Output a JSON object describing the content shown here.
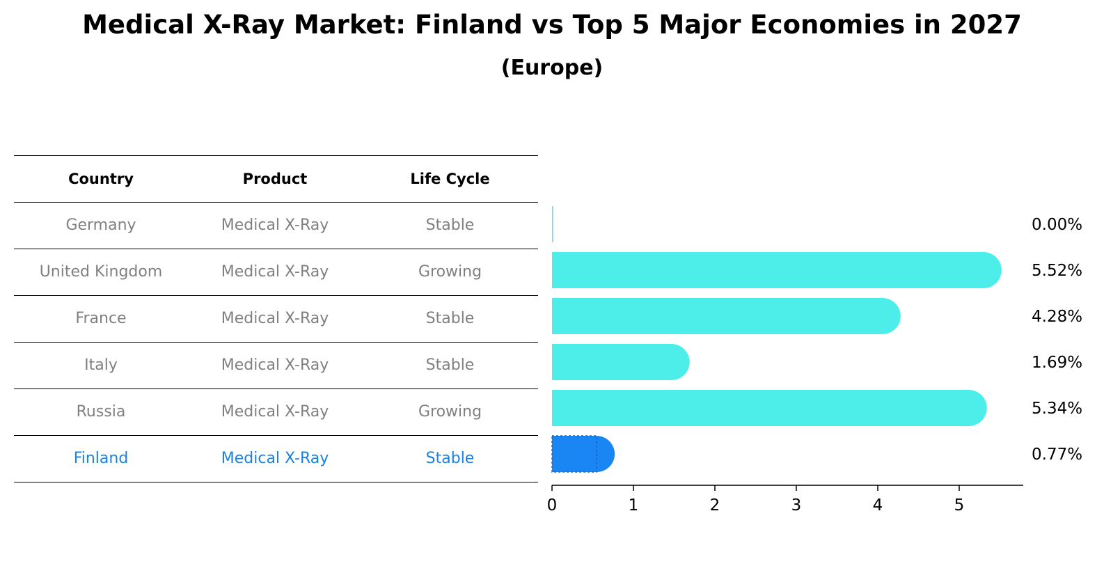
{
  "title": "Medical X-Ray Market: Finland vs Top 5 Major Economies in 2027",
  "subtitle": "(Europe)",
  "table": {
    "headers": [
      "Country",
      "Product",
      "Life Cycle"
    ],
    "rows": [
      {
        "country": "Germany",
        "product": "Medical X-Ray",
        "life_cycle": "Stable"
      },
      {
        "country": "United Kingdom",
        "product": "Medical X-Ray",
        "life_cycle": "Growing"
      },
      {
        "country": "France",
        "product": "Medical X-Ray",
        "life_cycle": "Stable"
      },
      {
        "country": "Italy",
        "product": "Medical X-Ray",
        "life_cycle": "Stable"
      },
      {
        "country": "Russia",
        "product": "Medical X-Ray",
        "life_cycle": "Growing"
      },
      {
        "country": "Finland",
        "product": "Medical X-Ray",
        "life_cycle": "Stable"
      }
    ]
  },
  "chart_data": {
    "type": "bar",
    "orientation": "horizontal",
    "categories": [
      "Germany",
      "United Kingdom",
      "France",
      "Italy",
      "Russia",
      "Finland"
    ],
    "values": [
      0.0,
      5.52,
      4.28,
      1.69,
      5.34,
      0.77
    ],
    "value_labels": [
      "0.00%",
      "5.52%",
      "4.28%",
      "1.69%",
      "5.34%",
      "0.77%"
    ],
    "highlight": "Finland",
    "xlim": [
      0,
      5.8
    ],
    "xticks": [
      0,
      1,
      2,
      3,
      4,
      5
    ],
    "xtick_labels": [
      "0",
      "1",
      "2",
      "3",
      "4",
      "5"
    ],
    "title": "",
    "xlabel": "",
    "ylabel": "",
    "grid": false,
    "colors": {
      "default": "#4deeea",
      "highlight": "#1a86f4"
    }
  }
}
